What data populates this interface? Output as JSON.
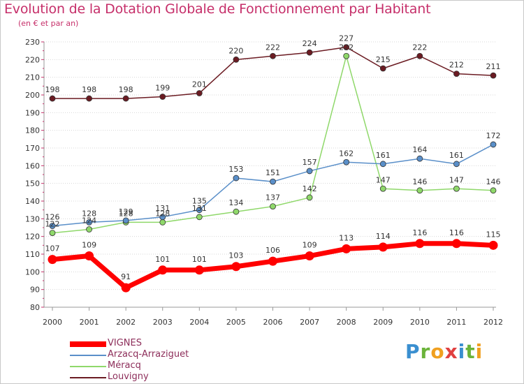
{
  "title": "Evolution de la Dotation Globale de Fonctionnement par Habitant",
  "subtitle": "(en € et par an)",
  "logo": {
    "text": "Proxiti",
    "letters": [
      "P",
      "r",
      "o",
      "x",
      "i",
      "t",
      "i"
    ],
    "colors": [
      "#3a8fd0",
      "#6bb33a",
      "#f0a020",
      "#e04040",
      "#3a8fd0",
      "#6bb33a",
      "#f0a020"
    ]
  },
  "chart_data": {
    "type": "line",
    "title": "Evolution de la Dotation Globale de Fonctionnement par Habitant",
    "ylabel": "(en € et par an)",
    "xlabel": "",
    "ylim": [
      80,
      230
    ],
    "yticks": [
      80,
      90,
      100,
      110,
      120,
      130,
      140,
      150,
      160,
      170,
      180,
      190,
      200,
      210,
      220,
      230
    ],
    "grid": true,
    "categories": [
      "2000",
      "2001",
      "2002",
      "2003",
      "2004",
      "2005",
      "2006",
      "2007",
      "2008",
      "2009",
      "2010",
      "2011",
      "2012"
    ],
    "series": [
      {
        "name": "Louvigny",
        "color": "#6b1b22",
        "width": 1.5,
        "marker": 4,
        "values": [
          198,
          198,
          198,
          199,
          201,
          220,
          222,
          224,
          227,
          215,
          222,
          212,
          211
        ]
      },
      {
        "name": "Méracq",
        "color": "#8fd86a",
        "width": 1.5,
        "marker": 4,
        "values": [
          122,
          124,
          128,
          128,
          131,
          134,
          137,
          142,
          222,
          147,
          146,
          147,
          146
        ]
      },
      {
        "name": "Arzacq-Arraziguet",
        "color": "#5a8fc9",
        "width": 1.5,
        "marker": 4,
        "values": [
          126,
          128,
          129,
          131,
          135,
          153,
          151,
          157,
          162,
          161,
          164,
          161,
          172
        ]
      },
      {
        "name": "VIGNES",
        "color": "#ff0000",
        "width": 7,
        "marker": 6.5,
        "values": [
          107,
          109,
          91,
          101,
          101,
          103,
          106,
          109,
          113,
          114,
          116,
          116,
          115
        ]
      }
    ],
    "legend_order": [
      "VIGNES",
      "Arzacq-Arraziguet",
      "Méracq",
      "Louvigny"
    ],
    "legend_position": "bottom-left"
  }
}
